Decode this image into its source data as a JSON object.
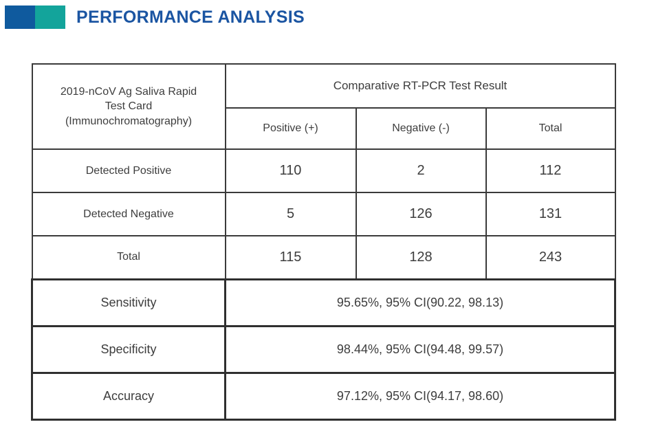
{
  "header": {
    "title": "PERFORMANCE ANALYSIS",
    "accent_colors": {
      "blue": "#0f5a9e",
      "teal": "#13a49b"
    },
    "title_color": "#1b55a2"
  },
  "table": {
    "corner_label": "2019-nCoV Ag Saliva Rapid Test Card (Immunochromatography)",
    "group_header": "Comparative RT-PCR Test Result",
    "column_headers": [
      "Positive (+)",
      "Negative (-)",
      "Total"
    ],
    "matrix_rows": [
      {
        "label": "Detected Positive",
        "values": [
          "110",
          "2",
          "112"
        ]
      },
      {
        "label": "Detected Negative",
        "values": [
          "5",
          "126",
          "131"
        ]
      },
      {
        "label": "Total",
        "values": [
          "115",
          "128",
          "243"
        ]
      }
    ],
    "summary_rows": [
      {
        "label": "Sensitivity",
        "value": "95.65%, 95% CI(90.22, 98.13)"
      },
      {
        "label": "Specificity",
        "value": "98.44%, 95% CI(94.48, 99.57)"
      },
      {
        "label": "Accuracy",
        "value": "97.12%, 95% CI(94.17, 98.60)"
      }
    ]
  }
}
